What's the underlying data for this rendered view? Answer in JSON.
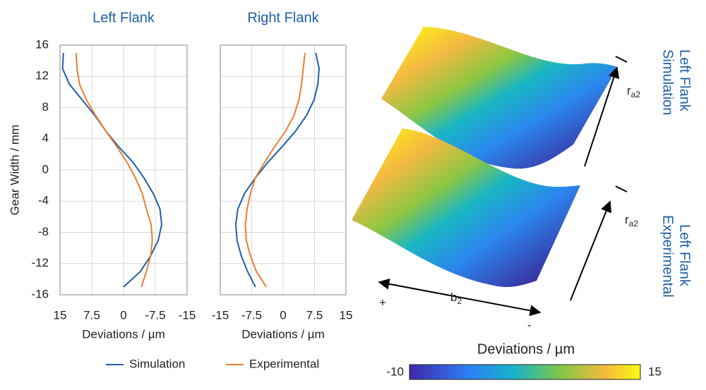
{
  "chart_data": [
    {
      "type": "line",
      "title": "Left Flank",
      "ylabel": "Gear Width / mm",
      "xlabel": "Deviations / µm",
      "y": [
        15,
        13,
        11,
        9,
        7,
        5,
        3,
        1,
        -1,
        -3,
        -5,
        -7,
        -9,
        -11,
        -13,
        -15
      ],
      "series": [
        {
          "name": "Simulation",
          "color": "#1f5fa8",
          "values": [
            14.2,
            14.4,
            12.8,
            9.8,
            6.8,
            4.2,
            1.2,
            -2.2,
            -4.8,
            -7,
            -8.6,
            -9,
            -8.2,
            -6.4,
            -4,
            0
          ]
        },
        {
          "name": "Experimental",
          "color": "#ed7d31",
          "values": [
            11.2,
            11,
            10.4,
            8.8,
            6.6,
            4.2,
            1.6,
            -0.8,
            -2.8,
            -4.4,
            -5.4,
            -6.5,
            -6.8,
            -6.4,
            -5.4,
            -4.2
          ]
        }
      ],
      "xlim": [
        15,
        -15
      ],
      "xticks": [
        15,
        7.5,
        0,
        -7.5,
        -15
      ],
      "ylim": [
        -16,
        16
      ],
      "yticks": [
        -16,
        -12,
        -8,
        -4,
        0,
        4,
        8,
        12,
        16
      ],
      "grid": true,
      "ytick_labels": true
    },
    {
      "type": "line",
      "title": "Right Flank",
      "xlabel": "Deviations / µm",
      "y": [
        15,
        13,
        11,
        9,
        7,
        5,
        3,
        1,
        -1,
        -3,
        -5,
        -7,
        -9,
        -11,
        -13,
        -15
      ],
      "series": [
        {
          "color": "#1f5fa8",
          "values": [
            7.8,
            8.6,
            8.3,
            7.4,
            5.6,
            3,
            -0.2,
            -3.6,
            -6.6,
            -9.2,
            -10.8,
            -11.3,
            -11,
            -10,
            -8.5,
            -6.6
          ]
        },
        {
          "color": "#ed7d31",
          "values": [
            5.2,
            4.8,
            4.4,
            3.8,
            2.6,
            0.6,
            -2,
            -4.4,
            -6.6,
            -7.8,
            -8.6,
            -9,
            -8.8,
            -7.8,
            -6.4,
            -4
          ]
        }
      ],
      "xlim": [
        -15,
        15
      ],
      "xticks": [
        -15,
        -7.5,
        0,
        7.5,
        15
      ],
      "ylim": [
        -16,
        16
      ],
      "yticks": [
        -16,
        -12,
        -8,
        -4,
        0,
        4,
        8,
        12,
        16
      ],
      "grid": true,
      "ytick_labels": false
    }
  ],
  "surfaces": {
    "top": [
      "Simulation",
      "Left Flank"
    ],
    "bottom": [
      "Experimental",
      "Left Flank"
    ],
    "radius": {
      "base": "r",
      "sub": "a2"
    },
    "width": {
      "base": "b",
      "sub": "2"
    },
    "plus": "+",
    "minus": "-"
  },
  "colorbar": {
    "label": "Deviations / µm",
    "min": "-10",
    "max": "15"
  }
}
